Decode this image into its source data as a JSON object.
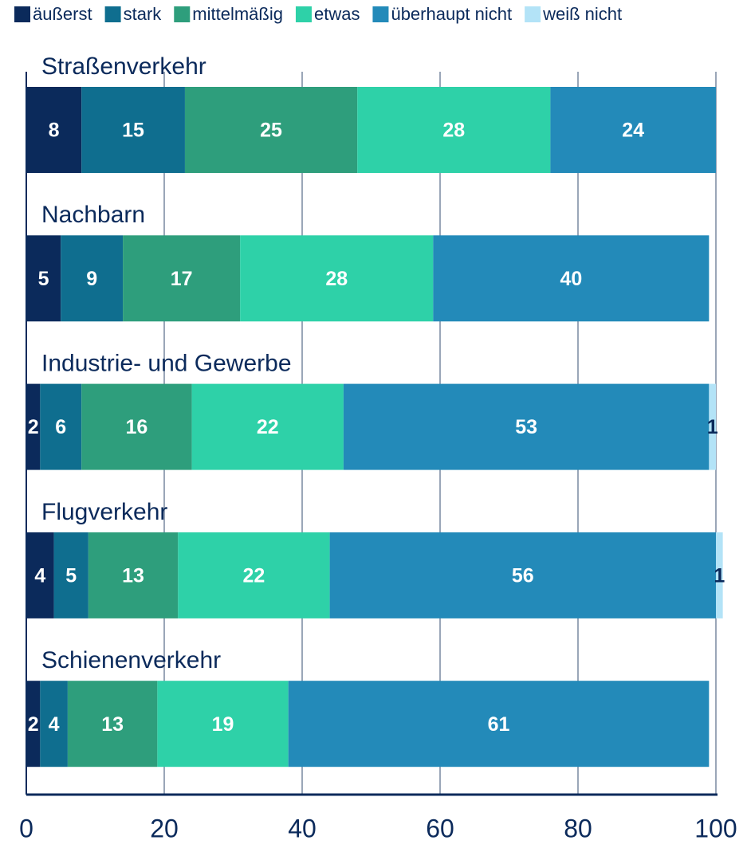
{
  "chart_data": {
    "type": "stacked-bar-horizontal",
    "categories": [
      "Straßenverkehr",
      "Nachbarn",
      "Industrie- und Gewerbe",
      "Flugverkehr",
      "Schienenverkehr"
    ],
    "series": [
      {
        "name": "äußerst",
        "color": "#0b2a5b",
        "values": [
          8,
          5,
          2,
          4,
          2
        ]
      },
      {
        "name": "stark",
        "color": "#0f6e8f",
        "values": [
          15,
          9,
          6,
          5,
          4
        ]
      },
      {
        "name": "mittelmäßig",
        "color": "#2e9e7c",
        "values": [
          25,
          17,
          16,
          13,
          13
        ]
      },
      {
        "name": "etwas",
        "color": "#2ed1a8",
        "values": [
          28,
          28,
          22,
          22,
          19
        ]
      },
      {
        "name": "überhaupt nicht",
        "color": "#238ab9",
        "values": [
          24,
          40,
          53,
          56,
          61
        ]
      },
      {
        "name": "weiß nicht",
        "color": "#b3e3f7",
        "values": [
          null,
          null,
          1,
          1,
          null
        ]
      }
    ],
    "xlim": [
      0,
      100
    ],
    "xticks": [
      0,
      20,
      40,
      60,
      80,
      100
    ],
    "grid": true,
    "legend": "top"
  }
}
